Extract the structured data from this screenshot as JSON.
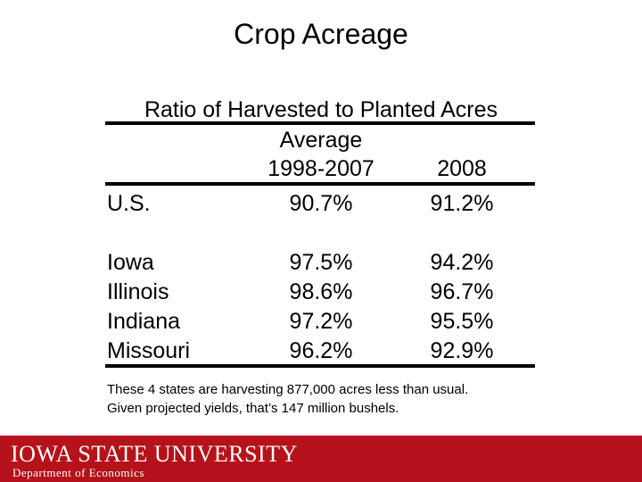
{
  "title": "Crop Acreage",
  "table": {
    "caption": "Ratio of Harvested to Planted Acres",
    "col1_header_line1": "Average",
    "col1_header_line2": "1998-2007",
    "col2_header": "2008",
    "rows": [
      {
        "label": "U.S.",
        "avg": "90.7%",
        "y2008": "91.2%"
      },
      {
        "label": "Iowa",
        "avg": "97.5%",
        "y2008": "94.2%"
      },
      {
        "label": "Illinois",
        "avg": "98.6%",
        "y2008": "96.7%"
      },
      {
        "label": "Indiana",
        "avg": "97.2%",
        "y2008": "95.5%"
      },
      {
        "label": "Missouri",
        "avg": "96.2%",
        "y2008": "92.9%"
      }
    ]
  },
  "note_line1": "These 4 states are harvesting 877,000 acres less than usual.",
  "note_line2": "Given projected yields, that’s 147 million bushels.",
  "footer": {
    "university": "IOWA STATE UNIVERSITY",
    "department": "Department of Economics",
    "brand_color": "#b5121b"
  }
}
